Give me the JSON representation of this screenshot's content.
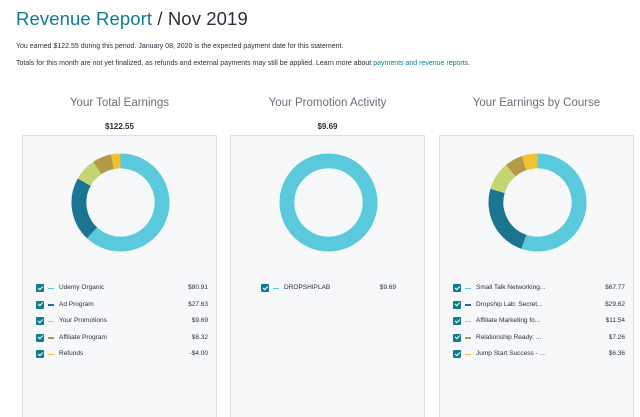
{
  "header": {
    "title_accent": "Revenue Report",
    "title_rest": " / Nov 2019"
  },
  "info": {
    "line1": "You earned $122.55 during this period. January 08, 2020 is the expected payment date for this statement.",
    "line2_prefix": "Totals for this month are not yet finalized, as refunds and external payments may still be applied. Learn more about ",
    "line2_link": "payments and revenue reports",
    "line2_suffix": "."
  },
  "colors": {
    "primary": "#0f7c90",
    "organic": "#5bc9dc",
    "ad": "#1b7590",
    "promotions": "#c3d571",
    "affiliate": "#b49a45",
    "refunds": "#f2c035",
    "card_bg": "#f7f8fa"
  },
  "columns": [
    {
      "title": "Your Total Earnings",
      "total": "$122.55",
      "items": [
        {
          "label": "Udemy Organic",
          "value": "$80.91",
          "color": "#5bc9dc",
          "share": 80.91
        },
        {
          "label": "Ad Program",
          "value": "$27.63",
          "color": "#1b7590",
          "share": 27.63
        },
        {
          "label": "Your Promotions",
          "value": "$9.69",
          "color": "#c3d571",
          "share": 9.69
        },
        {
          "label": "Affiliate Program",
          "value": "$8.32",
          "color": "#b49a45",
          "share": 8.32
        },
        {
          "label": "Refunds",
          "value": "-$4.00",
          "color": "#f2c035",
          "share": 4.0
        }
      ]
    },
    {
      "title": "Your Promotion Activity",
      "total": "$9.69",
      "items": [
        {
          "label": "DROPSHIPLAB",
          "value": "$9.69",
          "color": "#5bc9dc",
          "share": 9.69
        }
      ]
    },
    {
      "title": "Your Earnings by Course",
      "total": "",
      "items": [
        {
          "label": "Small Talk Networking...",
          "value": "$67.77",
          "color": "#5bc9dc",
          "share": 67.77
        },
        {
          "label": "Dropship Lab: Secret...",
          "value": "$29.62",
          "color": "#1b7590",
          "share": 29.62
        },
        {
          "label": "Affiliate Marketing fo...",
          "value": "$11.54",
          "color": "#c3d571",
          "share": 11.54
        },
        {
          "label": "Relationship Ready: ...",
          "value": "$7.26",
          "color": "#b49a45",
          "share": 7.26
        },
        {
          "label": "Jump Start Success - ...",
          "value": "$6.36",
          "color": "#f2c035",
          "share": 6.36
        }
      ]
    }
  ]
}
